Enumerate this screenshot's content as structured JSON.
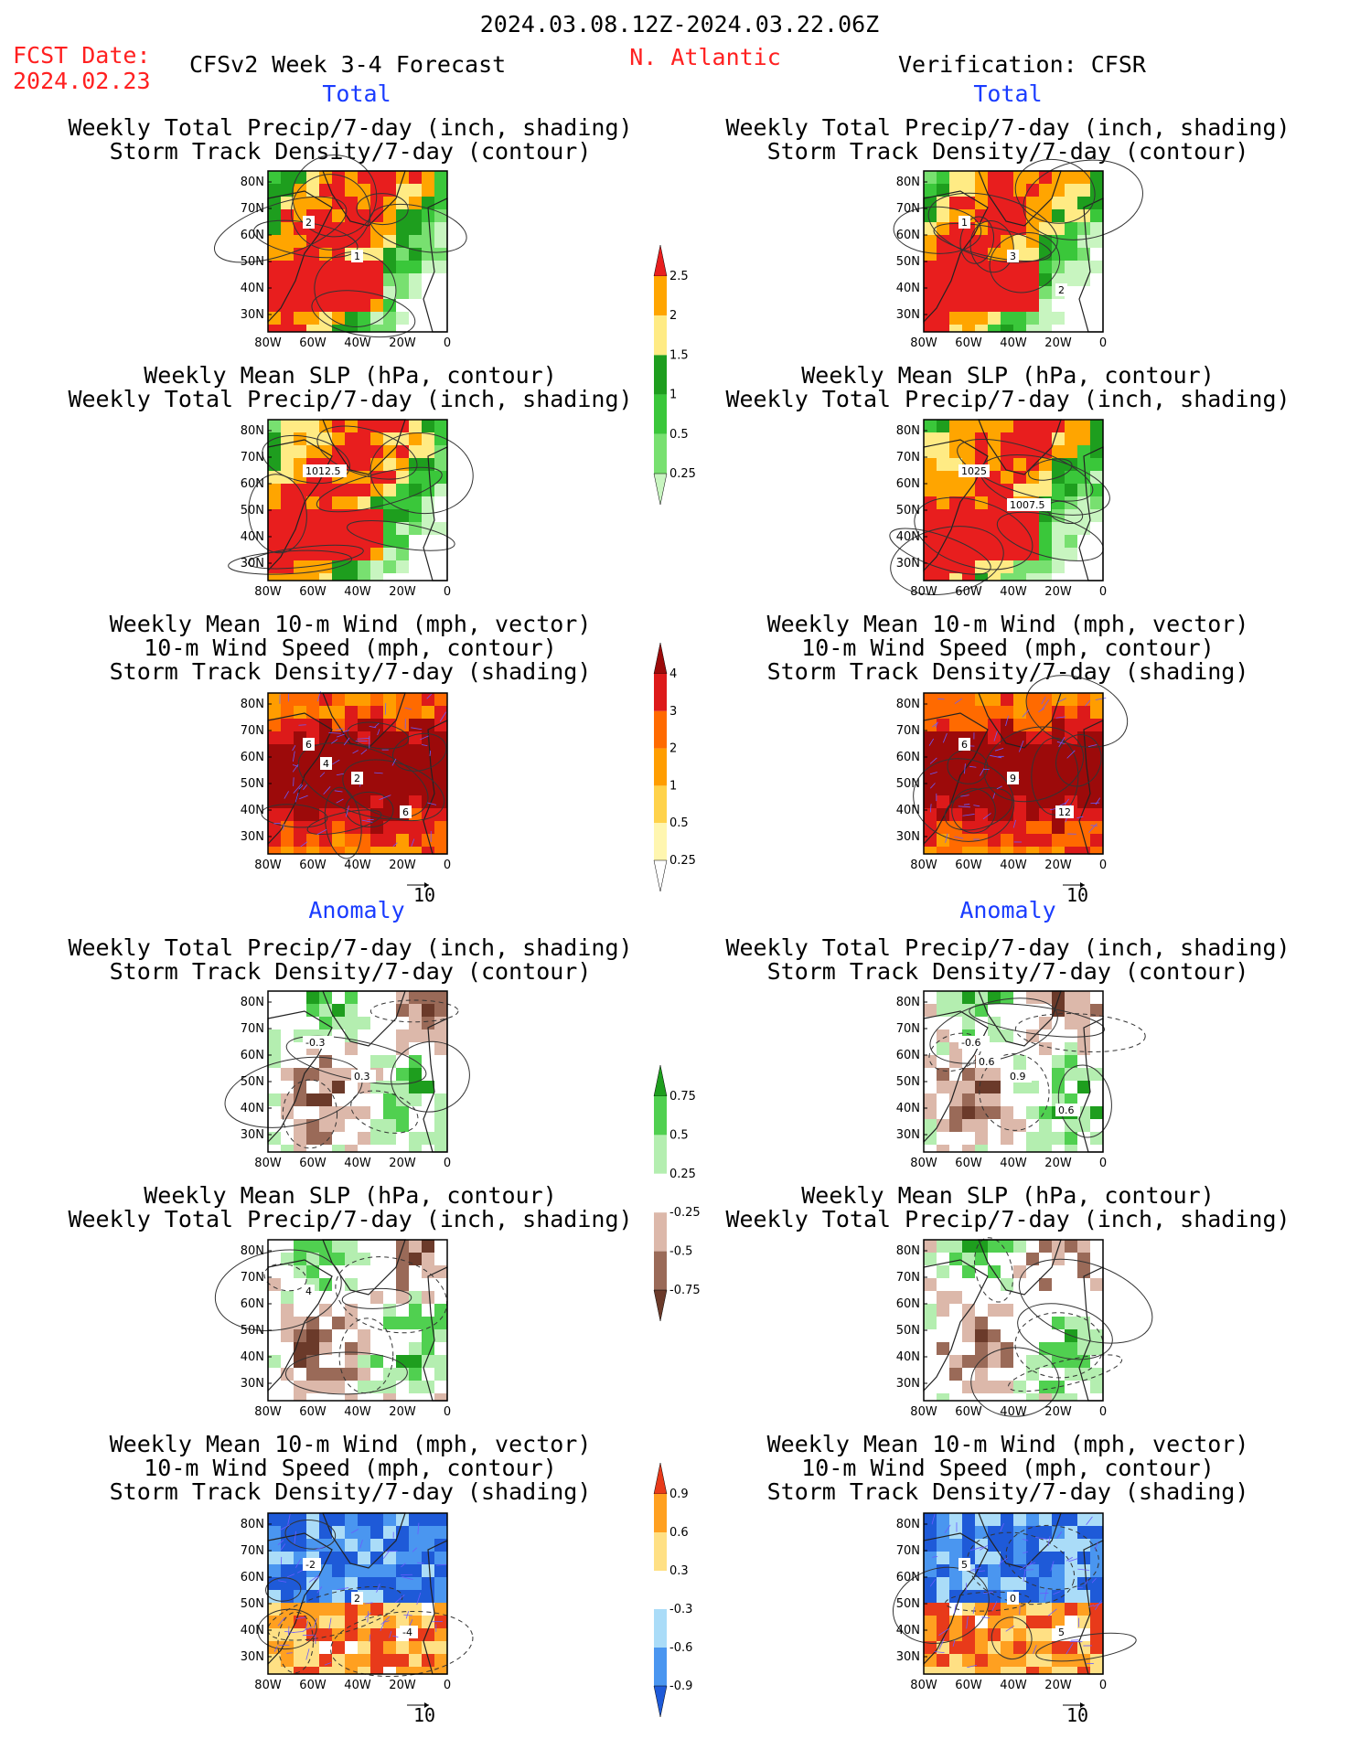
{
  "header": {
    "date_range": "2024.03.08.12Z-2024.03.22.06Z",
    "fcst_label": "FCST Date:",
    "fcst_date": "2024.02.23",
    "forecast_title": "CFSv2 Week 3-4 Forecast",
    "region": "N. Atlantic",
    "verification": "Verification: CFSR"
  },
  "sections": {
    "total": "Total",
    "anomaly": "Anomaly"
  },
  "titles": {
    "precip_a": "Weekly Total Precip/7-day (inch, shading)",
    "precip_b": "Storm Track Density/7-day (contour)",
    "slp_a": "Weekly Mean SLP (hPa, contour)",
    "slp_b": "Weekly Total Precip/7-day (inch, shading)",
    "wind_a": "Weekly Mean 10-m Wind (mph, vector)",
    "wind_b": "10-m Wind Speed (mph, contour)",
    "wind_c": "Storm Track Density/7-day (shading)"
  },
  "axes": {
    "lat_ticks": [
      "80N",
      "70N",
      "60N",
      "50N",
      "40N",
      "30N"
    ],
    "lon_ticks": [
      "80W",
      "60W",
      "40W",
      "20W",
      "0"
    ]
  },
  "vector_ref": "10",
  "colorbars": [
    {
      "id": "precip-total",
      "labels": [
        "0.25",
        "0.5",
        "1",
        "1.5",
        "2",
        "2.5"
      ],
      "colors": [
        "#c8f5c0",
        "#78e070",
        "#3ac73a",
        "#1e9e1e",
        "#ffeb84",
        "#ffa500",
        "#e81e1e"
      ]
    },
    {
      "id": "storm-total",
      "labels": [
        "0.25",
        "0.5",
        "1",
        "2",
        "3",
        "4"
      ],
      "colors": [
        "#ffffff",
        "#fff6b0",
        "#ffd24a",
        "#ff9d00",
        "#ff6a00",
        "#dd1a1a",
        "#9c0a0a"
      ]
    },
    {
      "id": "precip-anom",
      "labels": [
        "-0.75",
        "-0.5",
        "-0.25",
        "0.25",
        "0.5",
        "0.75"
      ],
      "colors": [
        "#6b3a2a",
        "#9a6a58",
        "#dcb8aa",
        "#ffffff",
        "#b4eeb0",
        "#50d050",
        "#1e9e1e"
      ]
    },
    {
      "id": "storm-anom",
      "labels": [
        "-0.9",
        "-0.6",
        "-0.3",
        "0.3",
        "0.6",
        "0.9"
      ],
      "colors": [
        "#1e5ad8",
        "#4a96f0",
        "#aadcf8",
        "#ffffff",
        "#ffe084",
        "#ffa020",
        "#e83a1a"
      ]
    }
  ],
  "panel_labels": {
    "L1": [
      "2",
      "1"
    ],
    "R1": [
      "1",
      "3",
      "2"
    ],
    "L2": [
      "1012.5"
    ],
    "R2": [
      "1025",
      "1007.5"
    ],
    "L3": [
      "6",
      "2",
      "6",
      "4"
    ],
    "R3": [
      "6",
      "9",
      "12"
    ],
    "L4": [
      "-0.3",
      "0.3"
    ],
    "R4": [
      "-0.6",
      "0.9",
      "0.6",
      "0.6"
    ],
    "L5": [
      "4"
    ],
    "R5": [],
    "L6": [
      "-2",
      "2",
      "-4"
    ],
    "R6": [
      "5",
      "0",
      "5"
    ]
  }
}
